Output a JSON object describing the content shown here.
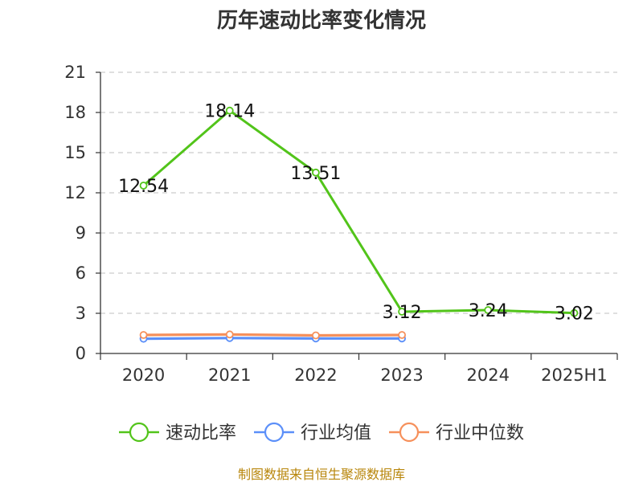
{
  "chart_data": {
    "type": "line",
    "title": "历年速动比率变化情况",
    "categories": [
      "2020",
      "2021",
      "2022",
      "2023",
      "2024",
      "2025H1"
    ],
    "ylim": [
      0,
      21
    ],
    "yticks": [
      "0",
      "3",
      "6",
      "9",
      "12",
      "15",
      "18",
      "21"
    ],
    "grid": true,
    "legend_position": "bottom",
    "series": [
      {
        "name": "速动比率",
        "color": "#52c41a",
        "values": [
          12.54,
          18.14,
          13.51,
          3.12,
          3.24,
          3.02
        ],
        "labels": [
          "12.54",
          "18.14",
          "13.51",
          "3.12",
          "3.24",
          "3.02"
        ]
      },
      {
        "name": "行业均值",
        "color": "#5b8ff9",
        "values": [
          1.1,
          1.15,
          1.12,
          1.12,
          null,
          null
        ],
        "labels": []
      },
      {
        "name": "行业中位数",
        "color": "#f6905b",
        "values": [
          1.38,
          1.42,
          1.35,
          1.38,
          null,
          null
        ],
        "labels": []
      }
    ]
  },
  "footer": {
    "source": "制图数据来自恒生聚源数据库"
  }
}
